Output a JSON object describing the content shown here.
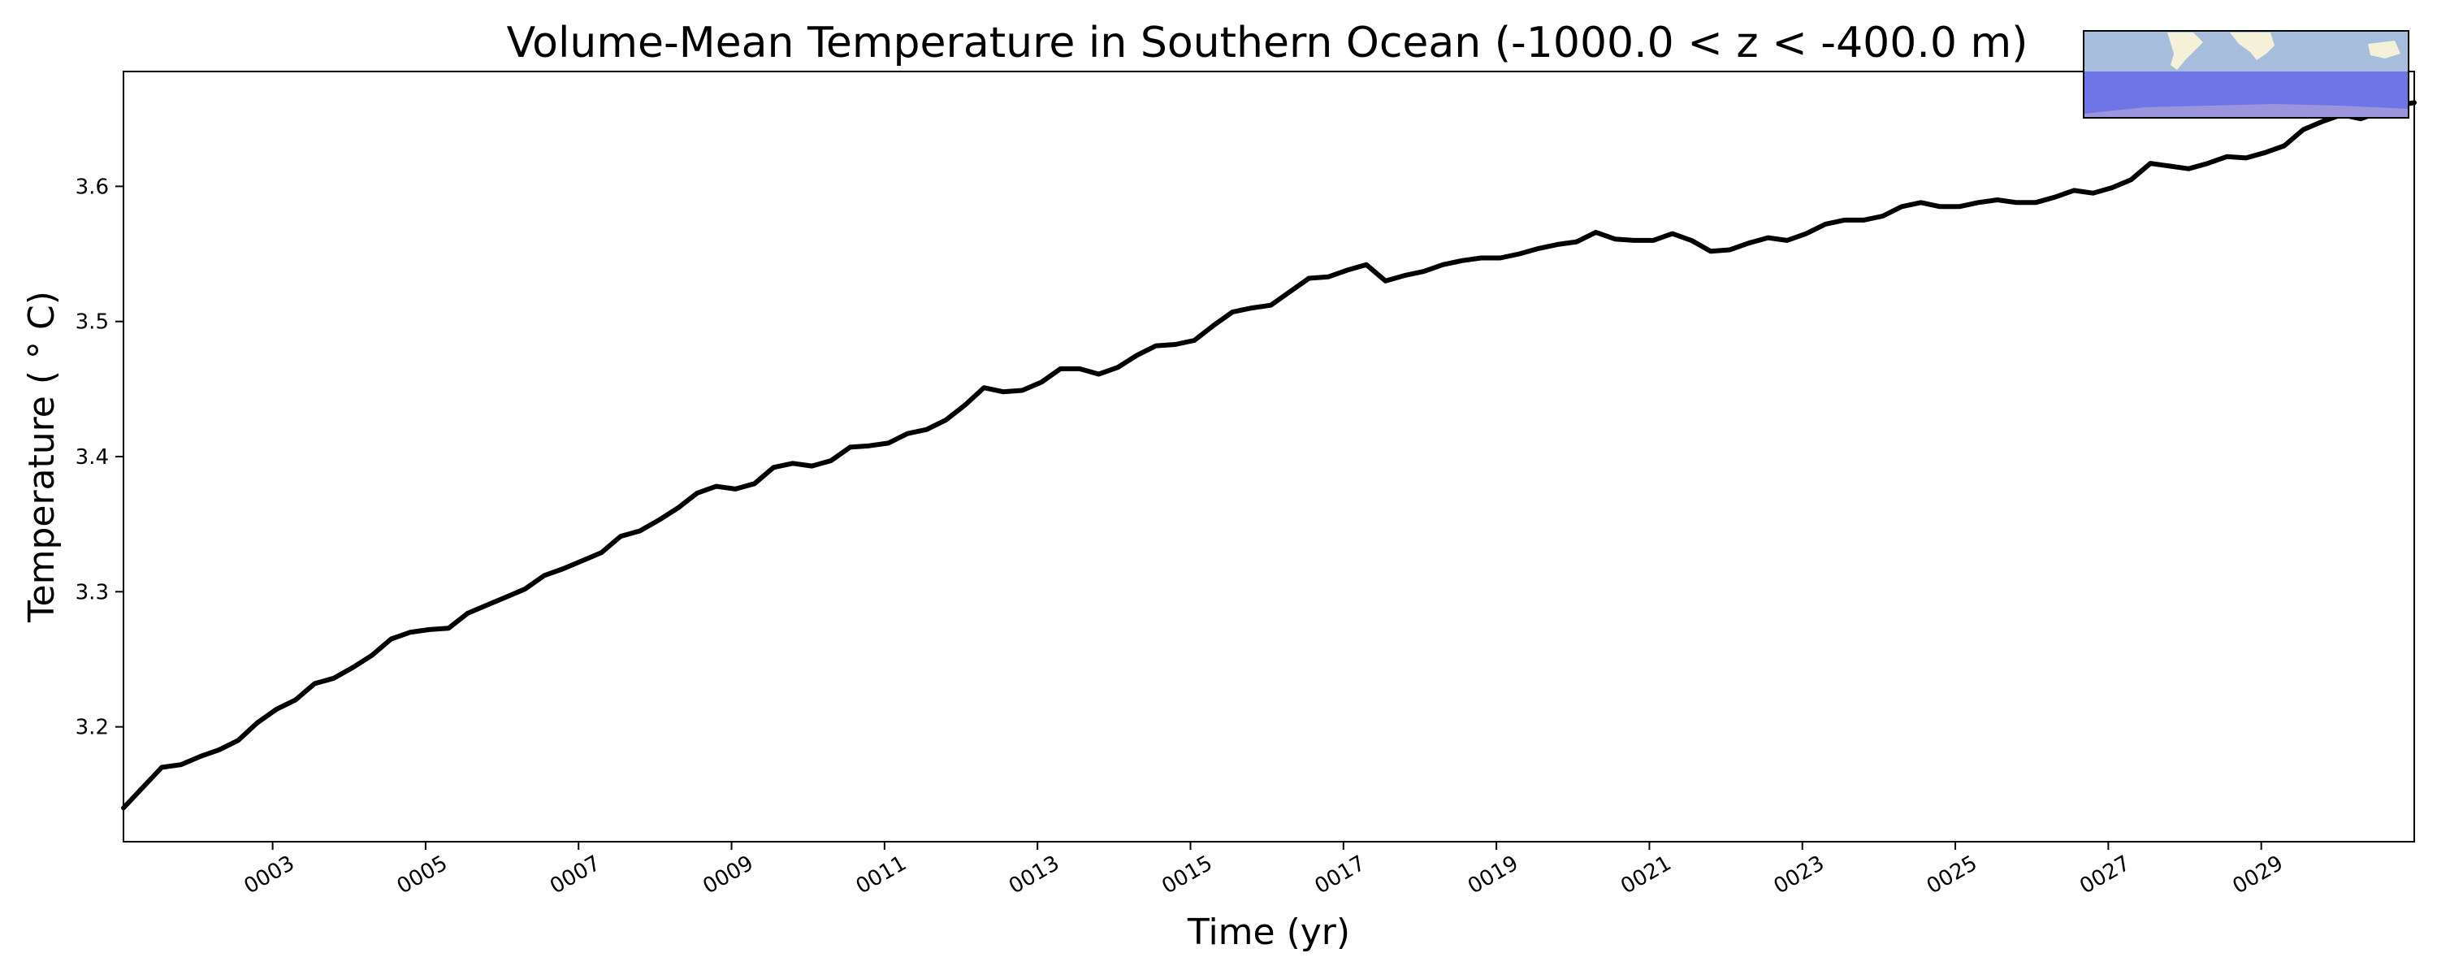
{
  "chart_data": {
    "type": "line",
    "title": "Volume-Mean Temperature in Southern Ocean (-1000.0 < z < -400.0 m)",
    "xlabel": "Time (yr)",
    "ylabel": "Temperature ($^\\circ$C)",
    "ylabel_display": "Temperature ( ° C)",
    "x_tick_labels": [
      "0003",
      "0005",
      "0007",
      "0009",
      "0011",
      "0013",
      "0015",
      "0017",
      "0019",
      "0021",
      "0023",
      "0025",
      "0027",
      "0029"
    ],
    "x_tick_values": [
      3,
      5,
      7,
      9,
      11,
      13,
      15,
      17,
      19,
      21,
      23,
      25,
      27,
      29
    ],
    "y_tick_labels": [
      "3.2",
      "3.3",
      "3.4",
      "3.5",
      "3.6"
    ],
    "y_tick_values": [
      3.2,
      3.3,
      3.4,
      3.5,
      3.6
    ],
    "xlim": [
      1.05,
      31.0
    ],
    "ylim": [
      3.115,
      3.685
    ],
    "grid": false,
    "line_color": "#000000",
    "series": [
      {
        "x": [
          1.05,
          1.3,
          1.55,
          1.8,
          2.05,
          2.3,
          2.55,
          2.8,
          3.05,
          3.3,
          3.55,
          3.8,
          4.05,
          4.3,
          4.55,
          4.8,
          5.05,
          5.3,
          5.55,
          5.8,
          6.05,
          6.3,
          6.55,
          6.8,
          7.05,
          7.3,
          7.55,
          7.8,
          8.05,
          8.3,
          8.55,
          8.8,
          9.05,
          9.3,
          9.55,
          9.8,
          10.05,
          10.3,
          10.55,
          10.8,
          11.05,
          11.3,
          11.55,
          11.8,
          12.05,
          12.3,
          12.55,
          12.8,
          13.05,
          13.3,
          13.55,
          13.8,
          14.05,
          14.3,
          14.55,
          14.8,
          15.05,
          15.3,
          15.55,
          15.8,
          16.05,
          16.3,
          16.55,
          16.8,
          17.05,
          17.3,
          17.55,
          17.8,
          18.05,
          18.3,
          18.55,
          18.8,
          19.05,
          19.3,
          19.55,
          19.8,
          20.05,
          20.3,
          20.55,
          20.8,
          21.05,
          21.3,
          21.55,
          21.8,
          22.05,
          22.3,
          22.55,
          22.8,
          23.05,
          23.3,
          23.55,
          23.8,
          24.05,
          24.3,
          24.55,
          24.8,
          25.05,
          25.3,
          25.55,
          25.8,
          26.05,
          26.3,
          26.55,
          26.8,
          27.05,
          27.3,
          27.55,
          27.8,
          28.05,
          28.3,
          28.55,
          28.8,
          29.05,
          29.3,
          29.55,
          29.8,
          30.05,
          30.3,
          30.55,
          30.8,
          31.0
        ],
        "y": [
          3.14,
          3.155,
          3.17,
          3.172,
          3.178,
          3.183,
          3.19,
          3.203,
          3.213,
          3.22,
          3.232,
          3.236,
          3.244,
          3.253,
          3.265,
          3.27,
          3.272,
          3.273,
          3.284,
          3.29,
          3.296,
          3.302,
          3.312,
          3.317,
          3.323,
          3.329,
          3.341,
          3.345,
          3.353,
          3.362,
          3.373,
          3.378,
          3.376,
          3.38,
          3.392,
          3.395,
          3.393,
          3.397,
          3.407,
          3.408,
          3.41,
          3.417,
          3.42,
          3.427,
          3.438,
          3.451,
          3.448,
          3.449,
          3.455,
          3.465,
          3.465,
          3.461,
          3.466,
          3.475,
          3.482,
          3.483,
          3.486,
          3.497,
          3.507,
          3.51,
          3.512,
          3.522,
          3.532,
          3.533,
          3.538,
          3.542,
          3.53,
          3.534,
          3.537,
          3.542,
          3.545,
          3.547,
          3.547,
          3.55,
          3.554,
          3.557,
          3.559,
          3.566,
          3.561,
          3.56,
          3.56,
          3.565,
          3.56,
          3.552,
          3.553,
          3.558,
          3.562,
          3.56,
          3.565,
          3.572,
          3.575,
          3.575,
          3.578,
          3.585,
          3.588,
          3.585,
          3.585,
          3.588,
          3.59,
          3.588,
          3.588,
          3.592,
          3.597,
          3.595,
          3.599,
          3.605,
          3.617,
          3.615,
          3.613,
          3.617,
          3.622,
          3.621,
          3.625,
          3.63,
          3.642,
          3.648,
          3.653,
          3.65,
          3.655,
          3.66,
          3.662
        ]
      }
    ],
    "inset_map": {
      "description_icon": "region-map-icon",
      "ocean_color": "#a6bddb",
      "land_color": "#f5f0d8",
      "region_color": "#6f74e6"
    }
  }
}
